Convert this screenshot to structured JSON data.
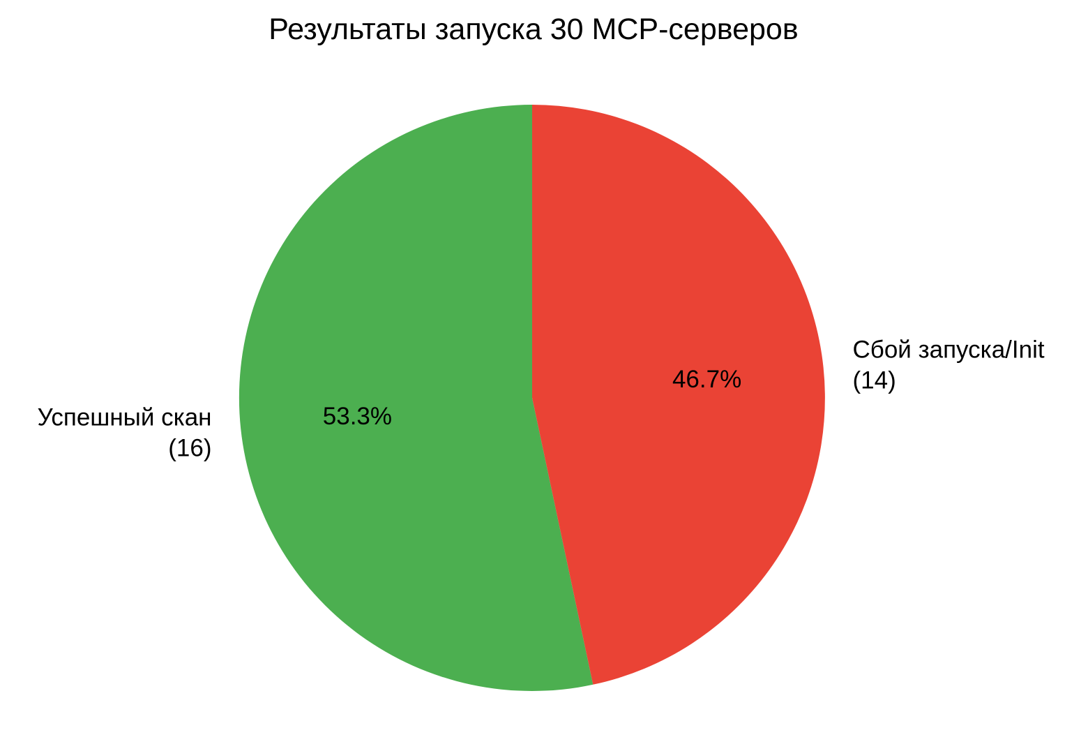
{
  "chart_data": {
    "type": "pie",
    "title": "Результаты запуска 30 MCP-серверов",
    "total": 30,
    "start_angle_deg": 90,
    "direction": "counterclockwise",
    "legend_position": "none",
    "background": "#ffffff",
    "text_color": "#000000",
    "slices": [
      {
        "label": "Успешный скан",
        "count_label": "(16)",
        "value": 16,
        "pct": 53.3,
        "pct_label": "53.3%",
        "color": "#4caf50"
      },
      {
        "label": "Сбой запуска/Init",
        "count_label": "(14)",
        "value": 14,
        "pct": 46.7,
        "pct_label": "46.7%",
        "color": "#ea4335"
      }
    ]
  }
}
